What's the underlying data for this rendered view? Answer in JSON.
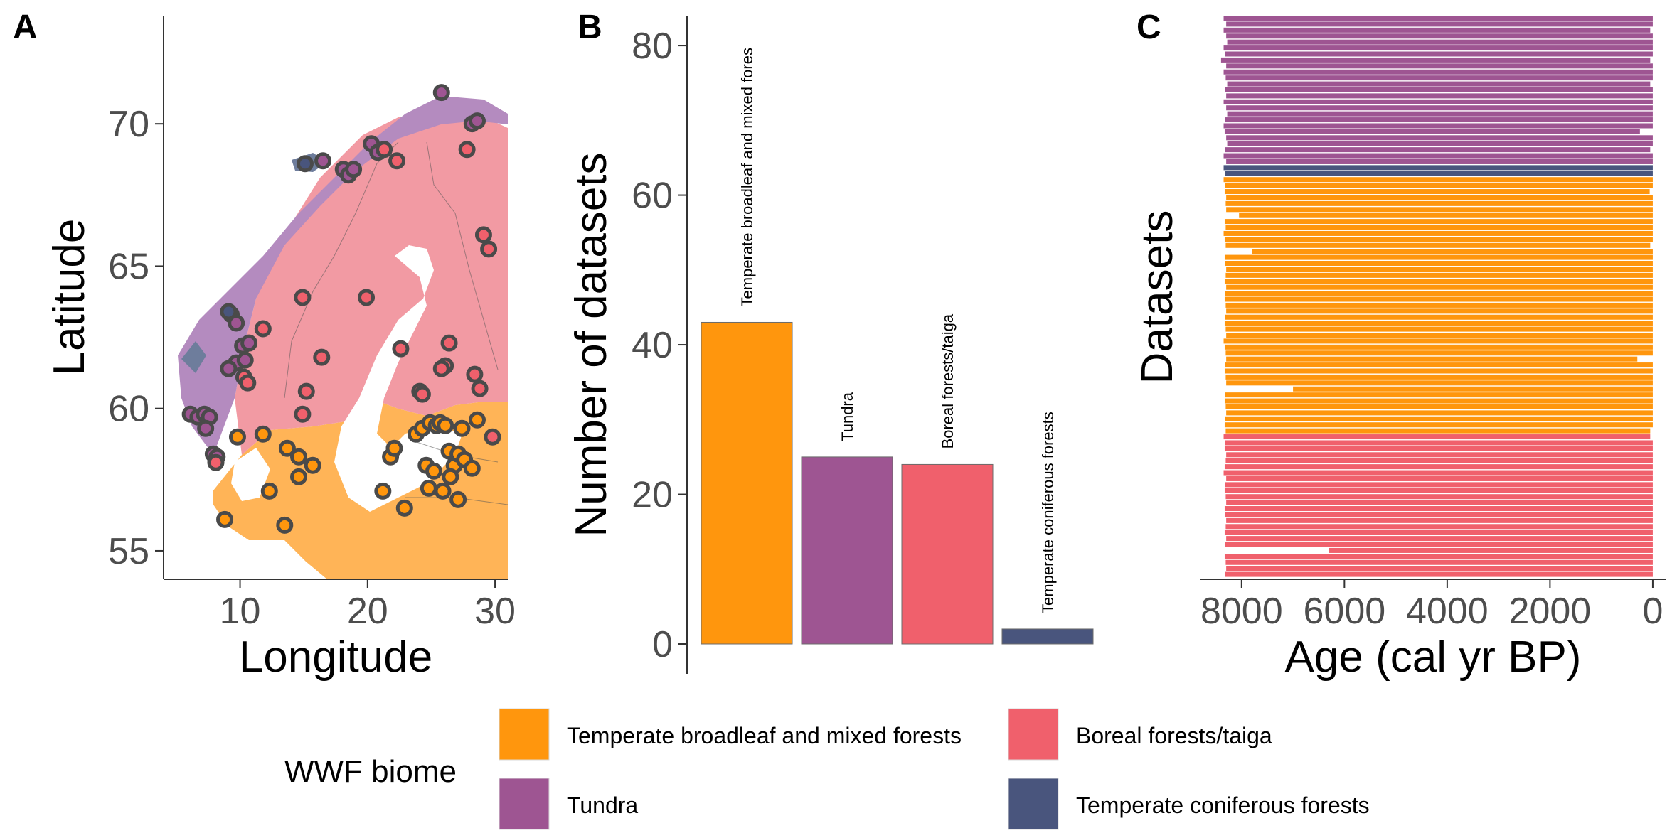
{
  "colors": {
    "temperate_broadleaf": "#ff960d",
    "tundra": "#9e5592",
    "boreal": "#f0606c",
    "temperate_coniferous": "#49557d",
    "map_temperate": "#ffb457",
    "map_boreal": "#f29aa3",
    "map_tundra": "#b48bbf",
    "map_coniferous": "#6e7d9c"
  },
  "panels": {
    "a": {
      "letter": "A"
    },
    "b": {
      "letter": "B"
    },
    "c": {
      "letter": "C"
    }
  },
  "legend": {
    "title": "WWF biome",
    "items": [
      {
        "label": "Temperate broadleaf and mixed forests",
        "color": "#ff960d"
      },
      {
        "label": "Boreal forests/taiga",
        "color": "#f0606c"
      },
      {
        "label": "Tundra",
        "color": "#9e5592"
      },
      {
        "label": "Temperate coniferous forests",
        "color": "#49557d"
      }
    ]
  },
  "chart_data": [
    {
      "panel": "A",
      "type": "scatter",
      "xlabel": "Longitude",
      "ylabel": "Latitude",
      "xlim": [
        4,
        31
      ],
      "ylim": [
        54,
        73.8
      ],
      "xticks": [
        10,
        20,
        30
      ],
      "yticks": [
        55,
        60,
        65,
        70
      ],
      "series": [
        {
          "biome": "Temperate broadleaf and mixed forests",
          "color": "#ff960d",
          "points": [
            [
              8.8,
              56.1
            ],
            [
              9.8,
              59.0
            ],
            [
              11.8,
              59.1
            ],
            [
              12.3,
              57.1
            ],
            [
              13.5,
              55.9
            ],
            [
              13.7,
              58.6
            ],
            [
              14.6,
              58.3
            ],
            [
              14.6,
              57.6
            ],
            [
              15.7,
              58.0
            ],
            [
              21.2,
              57.1
            ],
            [
              21.8,
              58.3
            ],
            [
              22.1,
              58.6
            ],
            [
              22.9,
              56.5
            ],
            [
              23.8,
              59.1
            ],
            [
              24.3,
              59.3
            ],
            [
              24.6,
              58.0
            ],
            [
              24.9,
              59.5
            ],
            [
              25.2,
              57.8
            ],
            [
              25.4,
              59.4
            ],
            [
              25.7,
              59.5
            ],
            [
              26.1,
              59.4
            ],
            [
              26.4,
              58.5
            ],
            [
              26.8,
              58.0
            ],
            [
              27.1,
              58.4
            ],
            [
              27.4,
              59.3
            ],
            [
              27.6,
              58.2
            ],
            [
              28.2,
              57.9
            ],
            [
              26.5,
              57.6
            ],
            [
              25.9,
              57.1
            ],
            [
              24.8,
              57.2
            ],
            [
              27.1,
              56.8
            ],
            [
              28.6,
              59.6
            ],
            [
              8.1,
              58.2
            ]
          ]
        },
        {
          "biome": "Tundra",
          "color": "#9e5592",
          "points": [
            [
              25.8,
              71.1
            ],
            [
              28.2,
              70.0
            ],
            [
              28.6,
              70.1
            ],
            [
              20.3,
              69.3
            ],
            [
              20.8,
              69.0
            ],
            [
              18.1,
              68.4
            ],
            [
              18.5,
              68.2
            ],
            [
              18.9,
              68.4
            ],
            [
              16.5,
              68.7
            ],
            [
              9.3,
              63.3
            ],
            [
              9.7,
              63.0
            ],
            [
              10.2,
              62.2
            ],
            [
              10.7,
              62.3
            ],
            [
              9.7,
              61.6
            ],
            [
              10.4,
              61.7
            ],
            [
              9.1,
              61.4
            ],
            [
              6.1,
              59.8
            ],
            [
              6.7,
              59.7
            ],
            [
              7.2,
              59.8
            ],
            [
              7.6,
              59.7
            ],
            [
              7.3,
              59.3
            ],
            [
              7.9,
              58.4
            ],
            [
              8.2,
              58.3
            ]
          ]
        },
        {
          "biome": "Boreal forests/taiga",
          "color": "#f0606c",
          "points": [
            [
              21.3,
              69.1
            ],
            [
              22.3,
              68.7
            ],
            [
              27.8,
              69.1
            ],
            [
              29.1,
              66.1
            ],
            [
              29.5,
              65.6
            ],
            [
              14.9,
              63.9
            ],
            [
              19.9,
              63.9
            ],
            [
              11.8,
              62.8
            ],
            [
              16.4,
              61.8
            ],
            [
              22.6,
              62.1
            ],
            [
              26.1,
              61.5
            ],
            [
              26.4,
              62.3
            ],
            [
              25.8,
              61.4
            ],
            [
              28.4,
              61.2
            ],
            [
              28.8,
              60.7
            ],
            [
              24.1,
              60.6
            ],
            [
              24.3,
              60.5
            ],
            [
              15.2,
              60.6
            ],
            [
              14.9,
              59.8
            ],
            [
              10.3,
              61.1
            ],
            [
              10.6,
              60.9
            ],
            [
              29.8,
              59.0
            ],
            [
              8.1,
              58.1
            ]
          ]
        },
        {
          "biome": "Temperate coniferous forests",
          "color": "#49557d",
          "points": [
            [
              15.1,
              68.6
            ],
            [
              9.1,
              63.4
            ]
          ]
        }
      ]
    },
    {
      "panel": "B",
      "type": "bar",
      "xlabel": "",
      "ylabel": "Number of datasets",
      "ylim": [
        0,
        84
      ],
      "yticks": [
        0,
        20,
        40,
        60,
        80
      ],
      "categories": [
        "Temperate broadleaf and mixed fores",
        "Tundra",
        "Boreal forests/taiga",
        "Temperate coniferous forests"
      ],
      "values": [
        43,
        25,
        24,
        2
      ],
      "colors": [
        "#ff960d",
        "#9e5592",
        "#f0606c",
        "#49557d"
      ]
    },
    {
      "panel": "C",
      "type": "bar",
      "orientation": "horizontal",
      "xlabel": "Age (cal yr BP)",
      "ylabel": "Datasets",
      "xlim": [
        8800,
        -250
      ],
      "x_reversed": true,
      "xticks": [
        8000,
        6000,
        4000,
        2000,
        0
      ],
      "groups": [
        {
          "biome": "Tundra",
          "color": "#9e5592",
          "ranges": [
            [
              8350,
              0
            ],
            [
              8300,
              0
            ],
            [
              8350,
              50
            ],
            [
              8300,
              0
            ],
            [
              8280,
              0
            ],
            [
              8350,
              0
            ],
            [
              8320,
              0
            ],
            [
              8400,
              50
            ],
            [
              8300,
              0
            ],
            [
              8350,
              0
            ],
            [
              8310,
              0
            ],
            [
              8280,
              50
            ],
            [
              8320,
              0
            ],
            [
              8300,
              0
            ],
            [
              8350,
              0
            ],
            [
              8300,
              0
            ],
            [
              8280,
              0
            ],
            [
              8320,
              0
            ],
            [
              8350,
              0
            ],
            [
              8330,
              250
            ],
            [
              8300,
              0
            ],
            [
              8280,
              0
            ],
            [
              8320,
              50
            ],
            [
              8350,
              0
            ],
            [
              8300,
              0
            ]
          ]
        },
        {
          "biome": "Temperate coniferous forests",
          "color": "#49557d",
          "ranges": [
            [
              8350,
              0
            ],
            [
              8320,
              0
            ]
          ]
        },
        {
          "biome": "Temperate broadleaf and mixed forests",
          "color": "#ff960d",
          "ranges": [
            [
              8350,
              0
            ],
            [
              8320,
              0
            ],
            [
              8330,
              60
            ],
            [
              8300,
              0
            ],
            [
              8310,
              0
            ],
            [
              8300,
              0
            ],
            [
              8050,
              0
            ],
            [
              8330,
              0
            ],
            [
              8310,
              0
            ],
            [
              8350,
              0
            ],
            [
              8330,
              0
            ],
            [
              8310,
              50
            ],
            [
              7800,
              0
            ],
            [
              8330,
              0
            ],
            [
              8320,
              0
            ],
            [
              8300,
              0
            ],
            [
              8310,
              0
            ],
            [
              8330,
              0
            ],
            [
              8300,
              0
            ],
            [
              8320,
              0
            ],
            [
              8330,
              0
            ],
            [
              8310,
              0
            ],
            [
              8300,
              0
            ],
            [
              8320,
              0
            ],
            [
              8330,
              0
            ],
            [
              8310,
              0
            ],
            [
              8300,
              0
            ],
            [
              8350,
              0
            ],
            [
              8330,
              0
            ],
            [
              8310,
              0
            ],
            [
              8300,
              300
            ],
            [
              8320,
              0
            ],
            [
              8330,
              0
            ],
            [
              8310,
              0
            ],
            [
              8300,
              0
            ],
            [
              7000,
              0
            ],
            [
              8320,
              0
            ],
            [
              8330,
              0
            ],
            [
              8310,
              0
            ],
            [
              8300,
              0
            ],
            [
              8320,
              0
            ],
            [
              8330,
              0
            ],
            [
              8310,
              50
            ]
          ]
        },
        {
          "biome": "Boreal forests/taiga",
          "color": "#f0606c",
          "ranges": [
            [
              8350,
              50
            ],
            [
              8320,
              0
            ],
            [
              8330,
              0
            ],
            [
              8300,
              0
            ],
            [
              8310,
              0
            ],
            [
              8330,
              0
            ],
            [
              8350,
              0
            ],
            [
              8300,
              0
            ],
            [
              8320,
              0
            ],
            [
              8330,
              0
            ],
            [
              8310,
              0
            ],
            [
              8300,
              0
            ],
            [
              8330,
              0
            ],
            [
              8320,
              0
            ],
            [
              8300,
              0
            ],
            [
              8310,
              0
            ],
            [
              8330,
              0
            ],
            [
              8300,
              0
            ],
            [
              8320,
              0
            ],
            [
              6300,
              0
            ],
            [
              8330,
              0
            ],
            [
              8310,
              0
            ],
            [
              8300,
              0
            ],
            [
              8320,
              0
            ]
          ]
        }
      ]
    }
  ]
}
